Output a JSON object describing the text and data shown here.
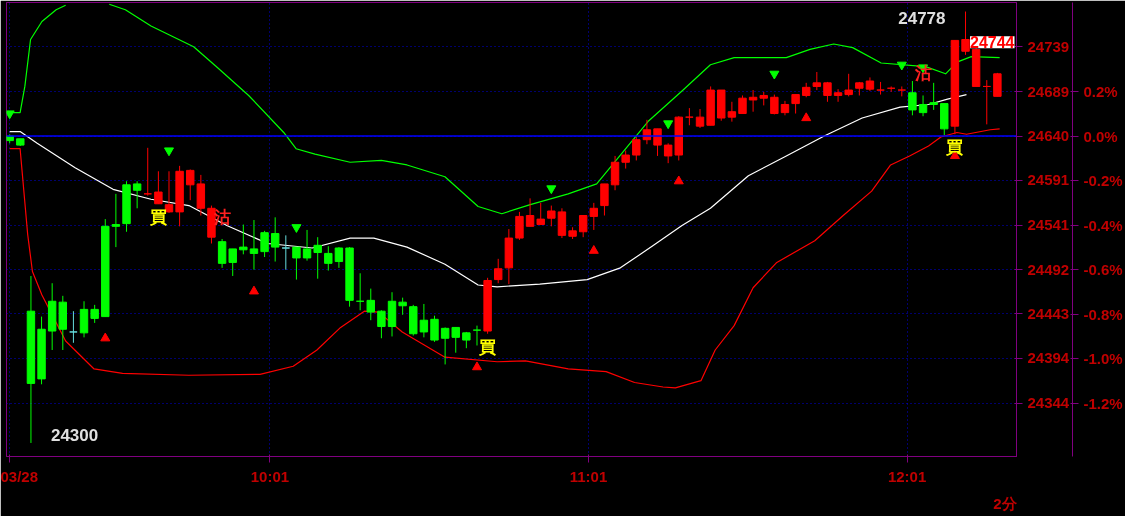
{
  "chart_data": {
    "type": "candlestick",
    "x": [
      9.2,
      9.2333,
      9.2667,
      9.3,
      9.3333,
      9.3667,
      9.4,
      9.4333,
      9.4667,
      9.5,
      9.5333,
      9.5667,
      9.6,
      9.6333,
      9.6667,
      9.7,
      9.7333,
      9.7667,
      9.8,
      9.8333,
      9.8667,
      9.9,
      9.9333,
      9.9667,
      10.0,
      10.0333,
      10.0667,
      10.1,
      10.1333,
      10.1667,
      10.2,
      10.2333,
      10.2667,
      10.3,
      10.3333,
      10.3667,
      10.4,
      10.4333,
      10.4667,
      10.5,
      10.5333,
      10.5667,
      10.6,
      10.6333,
      10.6667,
      10.7,
      10.7333,
      10.7667,
      10.8,
      10.8333,
      10.8667,
      10.9,
      10.9333,
      10.9667,
      11.0,
      11.0333,
      11.0667,
      11.1,
      11.1333,
      11.1667,
      11.2,
      11.2333,
      11.2667,
      11.3,
      11.3333,
      11.3667,
      11.4,
      11.4333,
      11.4667,
      11.5,
      11.5333,
      11.5667,
      11.6,
      11.6333,
      11.6667,
      11.7,
      11.7333,
      11.7667,
      11.8,
      11.8333,
      11.8667,
      11.9,
      11.9333,
      11.9667,
      12.0,
      12.0333,
      12.0667,
      12.1,
      12.1333,
      12.1667,
      12.2,
      12.2333,
      12.2667,
      12.3
    ],
    "ohlc": [
      [
        24640,
        24642,
        24632,
        24635
      ],
      [
        24637,
        24637,
        24629,
        24630
      ],
      [
        24446,
        24485,
        24300,
        24366
      ],
      [
        24426,
        24440,
        24365,
        24371
      ],
      [
        24457,
        24477,
        24403,
        24424
      ],
      [
        24456,
        24463,
        24403,
        24426
      ],
      [
        24423,
        24446,
        24411,
        24423
      ],
      [
        24448,
        24457,
        24417,
        24422
      ],
      [
        24448,
        24453,
        24433,
        24438
      ],
      [
        24540,
        24548,
        24440,
        24440
      ],
      [
        24542,
        24576,
        24517,
        24540
      ],
      [
        24586,
        24590,
        24534,
        24543
      ],
      [
        24587,
        24590,
        24560,
        24580
      ],
      [
        24576,
        24627,
        24574,
        24576
      ],
      [
        24565,
        24601,
        24565,
        24578
      ],
      [
        24556,
        24601,
        24555,
        24564
      ],
      [
        24556,
        24607,
        24540,
        24601
      ],
      [
        24586,
        24603,
        24569,
        24602
      ],
      [
        24560,
        24597,
        24552,
        24587
      ],
      [
        24528,
        24563,
        24521,
        24560
      ],
      [
        24523,
        24526,
        24494,
        24499
      ],
      [
        24515,
        24515,
        24485,
        24500
      ],
      [
        24517,
        24542,
        24509,
        24514
      ],
      [
        24515,
        24547,
        24492,
        24510
      ],
      [
        24533,
        24535,
        24506,
        24512
      ],
      [
        24532,
        24550,
        24501,
        24517
      ],
      [
        24516,
        24530,
        24492,
        24516
      ],
      [
        24517,
        24517,
        24481,
        24505
      ],
      [
        24515,
        24536,
        24502,
        24505
      ],
      [
        24519,
        24528,
        24482,
        24511
      ],
      [
        24510,
        24518,
        24491,
        24499
      ],
      [
        24516,
        24517,
        24494,
        24501
      ],
      [
        24516,
        24517,
        24451,
        24458
      ],
      [
        24457,
        24488,
        24447,
        24457
      ],
      [
        24458,
        24471,
        24436,
        24445
      ],
      [
        24446,
        24447,
        24416,
        24429
      ],
      [
        24457,
        24467,
        24418,
        24429
      ],
      [
        24456,
        24461,
        24442,
        24452
      ],
      [
        24451,
        24453,
        24419,
        24421
      ],
      [
        24436,
        24454,
        24417,
        24423
      ],
      [
        24437,
        24441,
        24412,
        24414
      ],
      [
        24427,
        24428,
        24387,
        24416
      ],
      [
        24428,
        24428,
        24400,
        24417
      ],
      [
        24422,
        24423,
        24405,
        24414
      ],
      [
        24425,
        24430,
        24408,
        24425
      ],
      [
        24424,
        24483,
        24421,
        24480
      ],
      [
        24481,
        24504,
        24477,
        24493
      ],
      [
        24494,
        24537,
        24476,
        24527
      ],
      [
        24527,
        24556,
        24525,
        24551
      ],
      [
        24540,
        24571,
        24540,
        24552
      ],
      [
        24542,
        24566,
        24542,
        24548
      ],
      [
        24549,
        24563,
        24540,
        24557
      ],
      [
        24530,
        24560,
        24527,
        24556
      ],
      [
        24529,
        24539,
        24526,
        24535
      ],
      [
        24534,
        24552,
        24528,
        24552
      ],
      [
        24551,
        24566,
        24536,
        24560
      ],
      [
        24563,
        24587,
        24552,
        24587
      ],
      [
        24586,
        24618,
        24580,
        24611
      ],
      [
        24611,
        24624,
        24604,
        24619
      ],
      [
        24619,
        24639,
        24613,
        24636
      ],
      [
        24636,
        24658,
        24631,
        24647
      ],
      [
        24630,
        24648,
        24618,
        24648
      ],
      [
        24618,
        24632,
        24610,
        24630
      ],
      [
        24619,
        24662,
        24613,
        24661
      ],
      [
        24661,
        24671,
        24652,
        24661
      ],
      [
        24651,
        24670,
        24649,
        24661
      ],
      [
        24652,
        24695,
        24652,
        24691
      ],
      [
        24660,
        24691,
        24657,
        24691
      ],
      [
        24661,
        24678,
        24656,
        24667
      ],
      [
        24665,
        24685,
        24665,
        24682
      ],
      [
        24680,
        24691,
        24667,
        24683
      ],
      [
        24682,
        24689,
        24674,
        24685
      ],
      [
        24665,
        24686,
        24664,
        24683
      ],
      [
        24666,
        24679,
        24663,
        24675
      ],
      [
        24676,
        24686,
        24665,
        24686
      ],
      [
        24685,
        24699,
        24683,
        24694
      ],
      [
        24695,
        24711,
        24691,
        24699
      ],
      [
        24685,
        24700,
        24678,
        24699
      ],
      [
        24685,
        24692,
        24678,
        24688
      ],
      [
        24686,
        24709,
        24684,
        24691
      ],
      [
        24693,
        24700,
        24685,
        24699
      ],
      [
        24692,
        24705,
        24690,
        24701
      ],
      [
        24691,
        24700,
        24686,
        24691
      ],
      [
        24693,
        24695,
        24689,
        24693
      ],
      [
        24691,
        24695,
        24684,
        24691
      ],
      [
        24688,
        24701,
        24663,
        24669
      ],
      [
        24675,
        24685,
        24662,
        24666
      ],
      [
        24677,
        24699,
        24669,
        24675
      ],
      [
        24676,
        24676,
        24641,
        24648
      ],
      [
        24651,
        24746,
        24642,
        24746
      ],
      [
        24734,
        24778,
        24730,
        24747
      ],
      [
        24695,
        24737,
        24695,
        24736
      ],
      [
        24695,
        24702,
        24653,
        24695
      ],
      [
        24684,
        24710,
        24684,
        24709
      ]
    ],
    "colors": [
      "#00ff00",
      "#00ff00",
      "#00ff00",
      "#00ff00",
      "#00ff00",
      "#00ff00",
      "#66dddd",
      "#00ff00",
      "#00ff00",
      "#00ff00",
      "#00ff00",
      "#00ff00",
      "#00ff00",
      "#ff0000",
      "#ff0000",
      "#ff0000",
      "#ff0000",
      "#ff0000",
      "#ff0000",
      "#ff0000",
      "#00ff00",
      "#00ff00",
      "#00ff00",
      "#00ff00",
      "#00ff00",
      "#00ff00",
      "#66dddd",
      "#00ff00",
      "#00ff00",
      "#00ff00",
      "#00ff00",
      "#00ff00",
      "#00ff00",
      "#00ff00",
      "#00ff00",
      "#00ff00",
      "#00ff00",
      "#00ff00",
      "#00ff00",
      "#00ff00",
      "#00ff00",
      "#00ff00",
      "#00ff00",
      "#00ff00",
      "#00ff00",
      "#ff0000",
      "#ff0000",
      "#ff0000",
      "#ff0000",
      "#ff0000",
      "#ff0000",
      "#ff0000",
      "#ff0000",
      "#ff0000",
      "#ff0000",
      "#ff0000",
      "#ff0000",
      "#ff0000",
      "#ff0000",
      "#ff0000",
      "#ff0000",
      "#ff0000",
      "#ff0000",
      "#ff0000",
      "#ff0000",
      "#ff0000",
      "#ff0000",
      "#ff0000",
      "#ff0000",
      "#ff0000",
      "#ff0000",
      "#ff0000",
      "#ff0000",
      "#ff0000",
      "#ff0000",
      "#ff0000",
      "#ff0000",
      "#ff0000",
      "#ff0000",
      "#ff0000",
      "#ff0000",
      "#ff0000",
      "#ff0000",
      "#ff0000",
      "#ff0000",
      "#00ff00",
      "#00ff00",
      "#00ff00",
      "#00ff00",
      "#ff0000",
      "#ff0000",
      "#ff0000",
      "#ff0000",
      "#ff0000"
    ],
    "series": [
      {
        "type": "line",
        "color": "#00ff00",
        "x": [
          9.2,
          9.2327,
          9.2476,
          9.2655,
          9.3012,
          9.3458,
          9.3756,
          9.4351,
          9.5125,
          9.5631,
          9.6435,
          9.7774,
          9.8518,
          9.95,
          10.0601,
          10.0988,
          10.1583,
          10.2685,
          10.3667,
          10.447,
          10.5661,
          10.6702,
          10.7446,
          10.8339,
          10.953,
          11.0423,
          11.206,
          11.3101,
          11.3994,
          11.4738,
          11.6375,
          11.7119,
          11.7863,
          11.8458,
          11.9351,
          12.075,
          12.1375,
          12.1732,
          12.2179,
          12.3071
        ],
        "values": [
          24666,
          24666,
          24695,
          24747,
          24767,
          24780,
          24785,
          null,
          24786,
          24780,
          24762,
          24739,
          24716,
          24685,
          24644,
          24626,
          24620,
          24611,
          24613,
          24608,
          24595,
          24562,
          24554,
          24564,
          24576,
          24587,
          24657,
          24690,
          24719,
          24727,
          24727,
          24736,
          24742,
          24738,
          24721,
          24717,
          24709,
          24722,
          24728,
          24727
        ]
      },
      {
        "type": "line",
        "color": "#ffffff",
        "x": [
          9.2,
          9.2327,
          9.2863,
          9.4054,
          9.5244,
          9.6435,
          9.7625,
          9.8815,
          10.0095,
          10.1494,
          10.2685,
          10.3429,
          10.447,
          10.5661,
          10.6702,
          10.7298,
          10.8637,
          11.0125,
          11.1167,
          11.2208,
          11.3101,
          11.3994,
          11.5185,
          11.6375,
          11.7565,
          11.8756,
          11.9946,
          12.0839,
          12.1435,
          12.203
        ],
        "values": [
          24645,
          24645,
          24632,
          24605,
          24581,
          24570,
          24563,
          24541,
          24521,
          24516,
          24527,
          24527,
          24517,
          24498,
          24475,
          24473,
          24476,
          24481,
          24494,
          24519,
          24541,
          24560,
          24596,
          24618,
          24640,
          24660,
          24672,
          24675,
          24681,
          24686
        ]
      },
      {
        "type": "line",
        "color": "#ff0000",
        "x": [
          9.2,
          9.2327,
          9.2565,
          9.2714,
          9.3012,
          9.3756,
          9.4649,
          9.5542,
          9.7625,
          9.9857,
          10.0899,
          10.1643,
          10.2387,
          10.3131,
          10.3577,
          10.4321,
          10.5661,
          10.7298,
          10.819,
          10.953,
          11.072,
          11.1613,
          11.2506,
          11.2893,
          11.3696,
          11.4143,
          11.4738,
          11.5333,
          11.6077,
          11.7268,
          11.8161,
          11.9054,
          11.9649,
          12.0244,
          12.0839,
          12.1226,
          12.1732,
          12.203,
          12.2774,
          12.3071
        ],
        "values": [
          24626,
          24626,
          24531,
          24490,
          24464,
          24413,
          24382,
          24377,
          24375,
          24376,
          24385,
          24403,
          24428,
          24446,
          24445,
          24423,
          24395,
          24390,
          24391,
          24382,
          24379,
          24367,
          24362,
          24361,
          24369,
          24403,
          24430,
          24472,
          24500,
          24524,
          24552,
          24579,
          24608,
          24618,
          24629,
          24639,
          24644,
          24642,
          24647,
          24648
        ]
      },
      {
        "type": "scatter",
        "marker": "triangle",
        "color": "#ff0000",
        "x": [
          9.5,
          9.9667,
          10.6667,
          11.0333,
          11.3,
          11.7,
          12.1667
        ],
        "values": [
          24416,
          24468,
          24384,
          24513,
          24590,
          24660,
          24618
        ]
      },
      {
        "type": "scatter",
        "marker": "triangle",
        "color": "#00ff00",
        "x": [
          9.2,
          9.7,
          10.1,
          10.9,
          11.2667,
          11.6,
          12.0,
          12.0667
        ],
        "values": [
          24665,
          24624,
          24539,
          24582,
          24654,
          24709,
          24719,
          24716
        ]
      }
    ],
    "xlim": [
      9.19,
      12.36
    ],
    "xticks": [
      {
        "value": 9.2,
        "label": "03/28"
      },
      {
        "value": 10.0167,
        "label": "10:01"
      },
      {
        "value": 11.0167,
        "label": "11:01"
      },
      {
        "value": 12.0167,
        "label": "12:01"
      }
    ],
    "ylim": [
      24285,
      24788
    ],
    "yticks": [
      24739,
      24689,
      24640,
      24591,
      24541,
      24492,
      24443,
      24394,
      24344
    ],
    "y2lim": [
      -1.44,
      0.6
    ],
    "y2ticks": [
      {
        "value": 0.2,
        "label": "0.2%"
      },
      {
        "value": 0.0,
        "label": "0.0%"
      },
      {
        "value": -0.2,
        "label": "-0.2%"
      },
      {
        "value": -0.4,
        "label": "-0.4%"
      },
      {
        "value": -0.6,
        "label": "-0.6%"
      },
      {
        "value": -0.8,
        "label": "-0.8%"
      },
      {
        "value": -1.0,
        "label": "-1.0%"
      },
      {
        "value": -1.2,
        "label": "-1.2%"
      }
    ],
    "grid": true,
    "ref_lines": [
      {
        "axis": "y2",
        "value": 0,
        "color": "#0000ff",
        "line_style": "solid"
      }
    ],
    "annotations": [
      {
        "text": "24300",
        "x": 9.2667,
        "y": 24300
      },
      {
        "text": "24778",
        "x": 12.2,
        "y": 24778
      },
      "24744",
      {
        "text": "買",
        "x": 9.6667,
        "y": 24565
      },
      {
        "text": "沽",
        "x": 9.8667,
        "y": 24526
      },
      {
        "text": "買",
        "x": 10.7,
        "y": 24421
      },
      {
        "text": "沽",
        "x": 12.0667,
        "y": 24685
      },
      {
        "text": "買",
        "x": 12.1667,
        "y": 24642
      },
      "2分"
    ]
  }
}
